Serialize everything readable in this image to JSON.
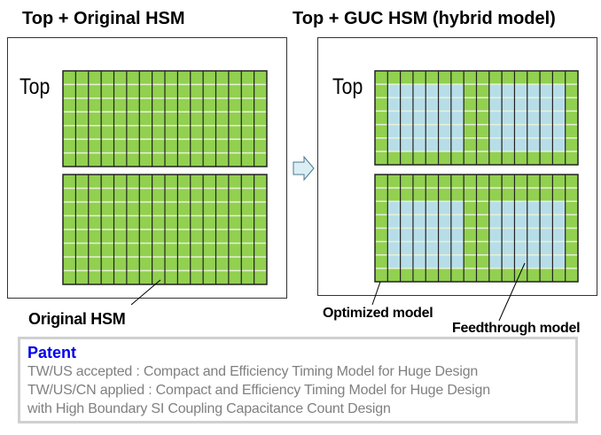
{
  "titles": {
    "left": "Top + Original HSM",
    "right": "Top + GUC HSM (hybrid model)"
  },
  "top_label": "Top",
  "labels": {
    "original": "Original HSM",
    "optimized": "Optimized model",
    "feedthrough": "Feedthrough model"
  },
  "colors": {
    "green": "#92d050",
    "blue": "#b7dee8",
    "grid_line": "#222222",
    "row_line": "#e6f2d6"
  },
  "patent": {
    "heading": "Patent",
    "lines": [
      "TW/US accepted : Compact and Efficiency Timing Model for Huge Design",
      "TW/US/CN applied : Compact and Efficiency Timing Model for Huge Design",
      "with High Boundary SI Coupling Capacitance Count Design"
    ]
  }
}
